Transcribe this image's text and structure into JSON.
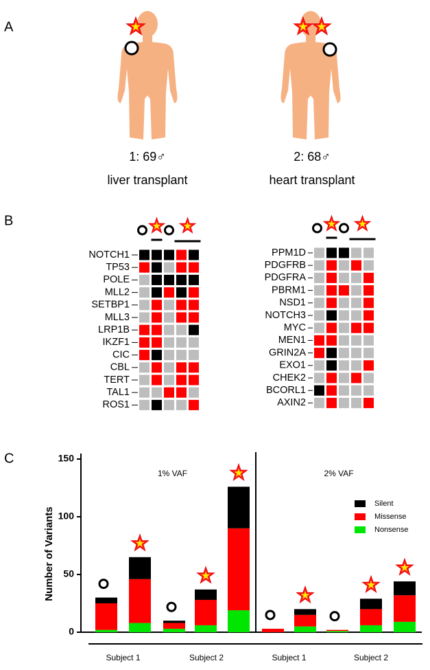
{
  "panel_labels": [
    "A",
    "B",
    "C"
  ],
  "subjects": [
    {
      "label": "1: 69♂",
      "caption": "liver transplant"
    },
    {
      "label": "2: 68♂",
      "caption": "heart transplant"
    }
  ],
  "cell_colors": [
    "#bdbdbd",
    "#ff0000",
    "#000000"
  ],
  "heatmaps": [
    {
      "genes": [
        "NOTCH1",
        "TP53",
        "POLE",
        "MLL2",
        "SETBP1",
        "MLL3",
        "LRP1B",
        "IKZF1",
        "CIC",
        "CBL",
        "TERT",
        "TAL1",
        "ROS1"
      ],
      "cells": [
        [
          2,
          2,
          2,
          1,
          2
        ],
        [
          1,
          2,
          0,
          1,
          1
        ],
        [
          0,
          2,
          2,
          2,
          2
        ],
        [
          0,
          2,
          1,
          2,
          1
        ],
        [
          0,
          1,
          0,
          1,
          1
        ],
        [
          0,
          1,
          0,
          1,
          1
        ],
        [
          1,
          1,
          0,
          0,
          2
        ],
        [
          1,
          1,
          0,
          0,
          0
        ],
        [
          1,
          2,
          0,
          0,
          0
        ],
        [
          0,
          1,
          0,
          1,
          1
        ],
        [
          0,
          1,
          0,
          1,
          1
        ],
        [
          0,
          0,
          1,
          1,
          0
        ],
        [
          0,
          2,
          0,
          0,
          1
        ]
      ]
    },
    {
      "genes": [
        "PPM1D",
        "PDGFRB",
        "PDGFRA",
        "PBRM1",
        "NSD1",
        "NOTCH3",
        "MYC",
        "MEN1",
        "GRIN2A",
        "EXO1",
        "CHEK2",
        "BCORL1",
        "AXIN2"
      ],
      "cells": [
        [
          0,
          2,
          2,
          0,
          0
        ],
        [
          0,
          1,
          0,
          1,
          0
        ],
        [
          0,
          1,
          0,
          0,
          1
        ],
        [
          0,
          1,
          1,
          0,
          1
        ],
        [
          0,
          1,
          0,
          0,
          1
        ],
        [
          0,
          2,
          0,
          0,
          1
        ],
        [
          0,
          1,
          0,
          1,
          1
        ],
        [
          1,
          1,
          0,
          0,
          0
        ],
        [
          1,
          2,
          0,
          0,
          0
        ],
        [
          0,
          2,
          0,
          0,
          1
        ],
        [
          0,
          1,
          0,
          1,
          0
        ],
        [
          2,
          1,
          0,
          0,
          0
        ],
        [
          0,
          1,
          0,
          0,
          1
        ]
      ]
    }
  ],
  "chart_data": {
    "type": "bar",
    "stacked": true,
    "ylabel": "Number of Variants",
    "ylim": [
      0,
      150
    ],
    "yticks": [
      0,
      50,
      100,
      150
    ],
    "category_groups": [
      "1% VAF",
      "1% VAF",
      "1% VAF",
      "1% VAF",
      "1% VAF",
      "2% VAF",
      "2% VAF",
      "2% VAF",
      "2% VAF",
      "2% VAF"
    ],
    "categories": [
      "Subject 1",
      "Subject 1",
      "Subject 2",
      "Subject 2",
      "Subject 2",
      "Subject 1",
      "Subject 1",
      "Subject 2",
      "Subject 2",
      "Subject 2"
    ],
    "legend": "right",
    "series": [
      {
        "name": "Silent",
        "color": "#000000",
        "values": [
          5,
          19,
          2,
          9,
          36,
          0,
          5,
          0,
          9,
          12
        ]
      },
      {
        "name": "Missense",
        "color": "#ff0000",
        "values": [
          23,
          38,
          5,
          22,
          71,
          3,
          10,
          1,
          14,
          23
        ]
      },
      {
        "name": "Nonsense",
        "color": "#00e600",
        "values": [
          2,
          8,
          3,
          6,
          19,
          0,
          5,
          1,
          6,
          9
        ]
      }
    ]
  }
}
